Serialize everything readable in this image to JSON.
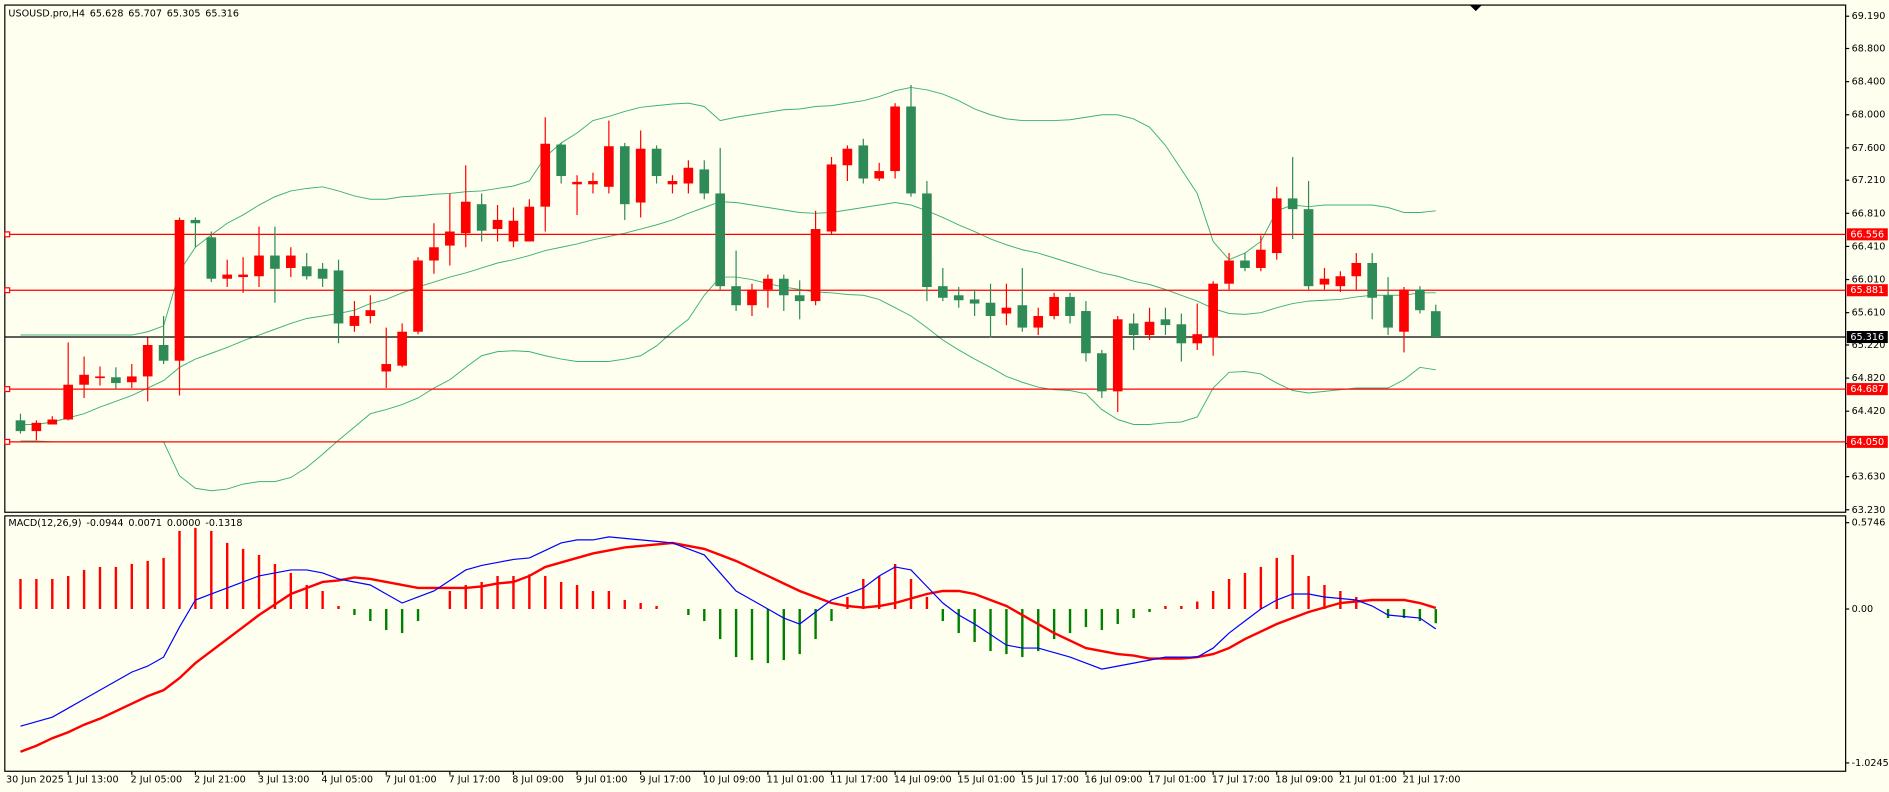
{
  "chart_data": [
    {
      "type": "candlestick",
      "symbol": "USOUSD.pro,H4",
      "start_label": "30 Jun 2025",
      "categories": [
        null,
        null,
        null,
        "1 Jul 13:00",
        null,
        null,
        null,
        "2 Jul 05:00",
        null,
        null,
        null,
        "2 Jul 21:00",
        null,
        null,
        null,
        "3 Jul 13:00",
        null,
        null,
        null,
        "4 Jul 05:00",
        null,
        null,
        null,
        "7 Jul 01:00",
        null,
        null,
        null,
        "7 Jul 17:00",
        null,
        null,
        null,
        "8 Jul 09:00",
        null,
        null,
        null,
        "9 Jul 01:00",
        null,
        null,
        null,
        "9 Jul 17:00",
        null,
        null,
        null,
        "10 Jul 09:00",
        null,
        null,
        null,
        "11 Jul 01:00",
        null,
        null,
        null,
        "11 Jul 17:00",
        null,
        null,
        null,
        "14 Jul 09:00",
        null,
        null,
        null,
        "15 Jul 01:00",
        null,
        null,
        null,
        "15 Jul 17:00",
        null,
        null,
        null,
        "16 Jul 09:00",
        null,
        null,
        null,
        "17 Jul 01:00",
        null,
        null,
        null,
        "17 Jul 17:00",
        null,
        null,
        null,
        "18 Jul 09:00",
        null,
        null,
        null,
        "21 Jul 01:00",
        null,
        null,
        null,
        "21 Jul 17:00",
        null,
        null
      ],
      "open": [
        64.31,
        64.18,
        64.26,
        64.32,
        64.74,
        64.82,
        64.83,
        64.77,
        64.84,
        65.22,
        65.03,
        66.73,
        66.52,
        66.02,
        66.04,
        66.05,
        66.3,
        66.15,
        66.17,
        66.14,
        66.12,
        65.45,
        65.57,
        64.9,
        64.97,
        65.38,
        66.24,
        66.42,
        66.57,
        66.92,
        66.62,
        66.47,
        66.47,
        66.89,
        67.64,
        67.16,
        67.16,
        67.13,
        67.62,
        66.94,
        67.59,
        67.16,
        67.17,
        67.34,
        67.05,
        65.93,
        65.7,
        65.89,
        66.02,
        65.82,
        65.75,
        66.59,
        67.39,
        67.63,
        67.23,
        67.32,
        68.1,
        67.05,
        65.93,
        65.82,
        65.77,
        65.73,
        65.6,
        65.7,
        65.43,
        65.57,
        65.8,
        65.63,
        65.12,
        64.66,
        65.48,
        65.34,
        65.53,
        65.47,
        65.24,
        65.31,
        65.96,
        66.24,
        66.15,
        66.33,
        66.99,
        66.86,
        65.95,
        65.93,
        66.05,
        66.21,
        65.82,
        65.38,
        65.89,
        65.628
      ],
      "high": [
        64.39,
        64.31,
        64.36,
        65.25,
        65.08,
        64.96,
        64.95,
        64.99,
        65.31,
        65.57,
        66.76,
        66.76,
        66.59,
        66.25,
        66.28,
        66.65,
        66.65,
        66.4,
        66.33,
        66.21,
        66.25,
        65.75,
        65.82,
        65.43,
        65.48,
        66.28,
        66.69,
        67.05,
        67.39,
        67.05,
        66.91,
        66.88,
        66.98,
        67.97,
        67.66,
        67.27,
        67.3,
        67.93,
        67.66,
        67.81,
        67.63,
        67.27,
        67.45,
        67.45,
        67.6,
        66.36,
        65.96,
        66.07,
        66.07,
        66.0,
        66.84,
        67.49,
        67.63,
        67.71,
        67.42,
        68.14,
        68.36,
        67.2,
        66.15,
        65.92,
        65.89,
        65.96,
        65.96,
        66.15,
        65.67,
        65.85,
        65.85,
        65.75,
        65.16,
        65.57,
        65.6,
        65.67,
        65.67,
        65.6,
        65.72,
        65.99,
        66.33,
        66.33,
        66.54,
        67.13,
        67.49,
        67.2,
        66.15,
        66.11,
        66.33,
        66.33,
        66.04,
        65.92,
        65.93,
        65.707
      ],
      "low": [
        64.15,
        64.07,
        64.26,
        64.31,
        64.58,
        64.73,
        64.68,
        64.7,
        64.54,
        64.99,
        64.61,
        66.4,
        65.98,
        65.92,
        65.85,
        65.92,
        65.73,
        66.04,
        66.01,
        65.92,
        65.24,
        65.38,
        65.48,
        64.7,
        64.95,
        65.35,
        66.08,
        66.18,
        66.4,
        66.47,
        66.47,
        66.4,
        66.47,
        66.59,
        67.17,
        66.79,
        67.05,
        67.05,
        66.73,
        66.76,
        67.17,
        67.05,
        67.05,
        66.98,
        65.89,
        65.63,
        65.57,
        65.67,
        65.63,
        65.53,
        65.7,
        66.55,
        67.2,
        67.17,
        67.2,
        67.23,
        67.01,
        65.75,
        65.75,
        65.67,
        65.57,
        65.31,
        65.46,
        65.38,
        65.34,
        65.53,
        65.48,
        65.02,
        64.58,
        64.41,
        65.16,
        65.28,
        65.34,
        65.02,
        65.16,
        65.09,
        65.89,
        66.11,
        66.11,
        66.25,
        66.5,
        65.89,
        65.89,
        65.86,
        65.89,
        65.53,
        65.34,
        65.13,
        65.6,
        65.305
      ],
      "close": [
        64.18,
        64.28,
        64.32,
        64.74,
        64.86,
        64.84,
        64.76,
        64.84,
        65.22,
        65.03,
        66.73,
        66.69,
        66.02,
        66.07,
        66.07,
        66.3,
        66.14,
        66.3,
        66.05,
        66.02,
        65.48,
        65.57,
        65.64,
        64.99,
        65.38,
        66.24,
        66.4,
        66.59,
        66.95,
        66.6,
        66.73,
        66.72,
        66.89,
        67.65,
        67.26,
        67.19,
        67.2,
        67.62,
        66.92,
        67.59,
        67.26,
        67.2,
        67.36,
        67.05,
        65.93,
        65.7,
        65.89,
        66.02,
        65.82,
        65.75,
        66.62,
        67.4,
        67.59,
        67.23,
        67.32,
        68.1,
        67.05,
        65.92,
        65.79,
        65.76,
        65.72,
        65.57,
        65.67,
        65.43,
        65.57,
        65.8,
        65.57,
        65.12,
        64.66,
        65.53,
        65.34,
        65.5,
        65.46,
        65.24,
        65.35,
        65.96,
        66.24,
        66.15,
        66.37,
        66.99,
        66.86,
        65.93,
        66.02,
        66.05,
        66.21,
        65.79,
        65.43,
        65.89,
        65.64,
        65.316
      ],
      "up_color": "#ff0000",
      "down_color": "#2e8b57",
      "bands": [
        {
          "color": "#3cb371",
          "values": [
            65.34,
            65.34,
            65.34,
            65.34,
            65.34,
            65.34,
            65.34,
            65.34,
            65.38,
            65.45,
            66.11,
            66.4,
            66.55,
            66.69,
            66.79,
            66.91,
            67.01,
            67.08,
            67.11,
            67.13,
            67.08,
            67.02,
            66.98,
            66.98,
            67.01,
            67.02,
            67.04,
            67.05,
            67.07,
            67.08,
            67.11,
            67.14,
            67.2,
            67.49,
            67.66,
            67.78,
            67.93,
            67.98,
            68.04,
            68.09,
            68.11,
            68.13,
            68.14,
            68.1,
            67.93,
            67.97,
            68.0,
            68.03,
            68.06,
            68.07,
            68.1,
            68.11,
            68.14,
            68.17,
            68.22,
            68.29,
            68.33,
            68.3,
            68.25,
            68.17,
            68.07,
            68.0,
            67.95,
            67.93,
            67.93,
            67.93,
            67.94,
            67.97,
            68.0,
            68.0,
            67.95,
            67.85,
            67.63,
            67.34,
            67.05,
            66.47,
            66.25,
            66.33,
            66.47,
            66.84,
            66.91,
            66.89,
            66.91,
            66.91,
            66.91,
            66.91,
            66.88,
            66.82,
            66.82,
            66.84
          ]
        },
        {
          "color": "#3cb371",
          "values": [
            64.26,
            64.26,
            64.29,
            64.34,
            64.39,
            64.47,
            64.54,
            64.61,
            64.7,
            64.79,
            64.95,
            65.05,
            65.12,
            65.19,
            65.27,
            65.34,
            65.41,
            65.48,
            65.54,
            65.57,
            65.6,
            65.64,
            65.72,
            65.77,
            65.85,
            65.92,
            65.98,
            66.04,
            66.09,
            66.15,
            66.21,
            66.25,
            66.3,
            66.36,
            66.4,
            66.44,
            66.49,
            66.53,
            66.57,
            66.62,
            66.67,
            66.73,
            66.81,
            66.88,
            66.95,
            66.94,
            66.91,
            66.88,
            66.85,
            66.82,
            66.81,
            66.82,
            66.85,
            66.88,
            66.91,
            66.94,
            66.91,
            66.84,
            66.76,
            66.67,
            66.59,
            66.5,
            66.43,
            66.37,
            66.33,
            66.27,
            66.21,
            66.15,
            66.09,
            66.05,
            65.99,
            65.95,
            65.89,
            65.82,
            65.75,
            65.66,
            65.6,
            65.59,
            65.61,
            65.67,
            65.72,
            65.75,
            65.76,
            65.77,
            65.8,
            65.82,
            65.82,
            65.82,
            65.85,
            65.85
          ]
        },
        {
          "color": "#3cb371",
          "values": [
            64.06,
            64.06,
            64.05,
            64.05,
            64.05,
            64.05,
            64.05,
            64.05,
            64.05,
            64.05,
            63.64,
            63.49,
            63.46,
            63.48,
            63.54,
            63.57,
            63.57,
            63.62,
            63.74,
            63.9,
            64.07,
            64.23,
            64.39,
            64.44,
            64.5,
            64.58,
            64.7,
            64.8,
            64.95,
            65.09,
            65.14,
            65.15,
            65.14,
            65.09,
            65.05,
            65.02,
            65.02,
            65.02,
            65.05,
            65.09,
            65.21,
            65.38,
            65.53,
            65.82,
            66.04,
            66.04,
            66.01,
            65.96,
            65.92,
            65.89,
            65.86,
            65.85,
            65.83,
            65.82,
            65.77,
            65.67,
            65.57,
            65.43,
            65.28,
            65.16,
            65.05,
            64.95,
            64.84,
            64.77,
            64.71,
            64.68,
            64.67,
            64.63,
            64.44,
            64.32,
            64.26,
            64.26,
            64.28,
            64.29,
            64.35,
            64.7,
            64.89,
            64.9,
            64.87,
            64.76,
            64.67,
            64.64,
            64.66,
            64.68,
            64.7,
            64.7,
            64.7,
            64.8,
            64.95,
            64.92
          ]
        }
      ],
      "levels": [
        66.556,
        65.881,
        64.687,
        {
          "value": 64.05,
          "label": "64.050"
        }
      ],
      "level_color": "#ff0000",
      "last_price_color": "#000000",
      "ylim": [
        63.2,
        69.31
      ],
      "yticks": [
        {
          "value": 69.19,
          "label": "69.190"
        },
        {
          "value": 68.8,
          "label": "68.800"
        },
        {
          "value": 68.4,
          "label": "68.400"
        },
        {
          "value": 68,
          "label": "68.000"
        },
        {
          "value": 67.6,
          "label": "67.600"
        },
        {
          "value": 67.21,
          "label": "67.210"
        },
        {
          "value": 66.81,
          "label": "66.810"
        },
        {
          "value": 66.41,
          "label": "66.410"
        },
        {
          "value": 66.01,
          "label": "66.010"
        },
        {
          "value": 65.61,
          "label": "65.610"
        },
        {
          "value": 65.22,
          "label": "65.220"
        },
        {
          "value": 64.82,
          "label": "64.820"
        },
        {
          "value": 64.42,
          "label": "64.420"
        },
        {
          "value": 64.03,
          "label": "64.030"
        },
        {
          "value": 63.63,
          "label": "63.630"
        },
        {
          "value": 63.23,
          "label": "63.230"
        }
      ]
    },
    {
      "type": "macd",
      "title": "MACD(12,26,9)",
      "histogram": {
        "up_color": "#ff0000",
        "down_color": "#008000",
        "values": [
          0.2,
          0.2,
          0.2,
          0.22,
          0.26,
          0.28,
          0.28,
          0.3,
          0.32,
          0.34,
          0.52,
          0.54,
          0.52,
          0.44,
          0.4,
          0.36,
          0.3,
          0.24,
          0.16,
          0.12,
          0.02,
          -0.04,
          -0.08,
          -0.14,
          -0.16,
          -0.08,
          0.0,
          0.12,
          0.16,
          0.18,
          0.22,
          0.22,
          0.23,
          0.22,
          0.18,
          0.16,
          0.12,
          0.12,
          0.06,
          0.04,
          0.02,
          0.0,
          -0.04,
          -0.08,
          -0.2,
          -0.32,
          -0.34,
          -0.36,
          -0.34,
          -0.3,
          -0.2,
          -0.08,
          0.08,
          0.2,
          0.22,
          0.3,
          0.2,
          0.08,
          -0.08,
          -0.16,
          -0.22,
          -0.28,
          -0.3,
          -0.32,
          -0.28,
          -0.2,
          -0.16,
          -0.12,
          -0.14,
          -0.1,
          -0.06,
          -0.02,
          0.02,
          0.02,
          0.05,
          0.12,
          0.2,
          0.24,
          0.28,
          0.34,
          0.36,
          0.22,
          0.16,
          0.12,
          0.08,
          0.0,
          -0.06,
          -0.06,
          -0.08,
          -0.0944
        ]
      },
      "series": [
        {
          "color": "#ff0000",
          "width": 2,
          "values": [
            -0.95,
            -0.91,
            -0.86,
            -0.82,
            -0.77,
            -0.73,
            -0.68,
            -0.63,
            -0.58,
            -0.54,
            -0.46,
            -0.36,
            -0.28,
            -0.2,
            -0.12,
            -0.04,
            0.03,
            0.1,
            0.14,
            0.18,
            0.19,
            0.21,
            0.2,
            0.18,
            0.16,
            0.14,
            0.14,
            0.14,
            0.14,
            0.15,
            0.17,
            0.18,
            0.22,
            0.28,
            0.31,
            0.34,
            0.37,
            0.39,
            0.41,
            0.42,
            0.43,
            0.44,
            0.42,
            0.4,
            0.36,
            0.32,
            0.27,
            0.22,
            0.17,
            0.12,
            0.08,
            0.04,
            0.02,
            0.01,
            0.02,
            0.04,
            0.07,
            0.1,
            0.12,
            0.12,
            0.1,
            0.06,
            0.02,
            -0.04,
            -0.1,
            -0.16,
            -0.21,
            -0.26,
            -0.28,
            -0.3,
            -0.31,
            -0.33,
            -0.33,
            -0.33,
            -0.32,
            -0.3,
            -0.26,
            -0.2,
            -0.15,
            -0.1,
            -0.06,
            -0.02,
            0.01,
            0.04,
            0.05,
            0.06,
            0.06,
            0.06,
            0.04,
            0.0071
          ]
        },
        {
          "color": "#0000ff",
          "width": 1,
          "values": [
            -0.78,
            -0.75,
            -0.72,
            -0.66,
            -0.6,
            -0.54,
            -0.48,
            -0.42,
            -0.38,
            -0.32,
            -0.12,
            0.06,
            0.1,
            0.14,
            0.18,
            0.22,
            0.24,
            0.26,
            0.26,
            0.24,
            0.2,
            0.18,
            0.16,
            0.1,
            0.04,
            0.08,
            0.12,
            0.19,
            0.26,
            0.29,
            0.31,
            0.33,
            0.34,
            0.39,
            0.44,
            0.46,
            0.46,
            0.48,
            0.47,
            0.46,
            0.45,
            0.44,
            0.4,
            0.36,
            0.24,
            0.12,
            0.06,
            0.0,
            -0.06,
            -0.1,
            -0.02,
            0.06,
            0.1,
            0.14,
            0.22,
            0.28,
            0.26,
            0.15,
            0.04,
            -0.04,
            -0.1,
            -0.17,
            -0.24,
            -0.26,
            -0.26,
            -0.29,
            -0.32,
            -0.36,
            -0.4,
            -0.38,
            -0.36,
            -0.34,
            -0.32,
            -0.32,
            -0.32,
            -0.26,
            -0.16,
            -0.08,
            0.0,
            0.06,
            0.1,
            0.1,
            0.08,
            0.07,
            0.06,
            0.02,
            -0.04,
            -0.05,
            -0.06,
            -0.1318
          ]
        }
      ],
      "readout_extra": {
        "value": 0,
        "label": "0.0000"
      },
      "ylim": [
        -1.08,
        0.62
      ],
      "yticks": [
        0.5746,
        {
          "value": 0,
          "label": "0.00"
        },
        -1.0245
      ]
    }
  ]
}
